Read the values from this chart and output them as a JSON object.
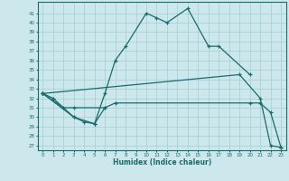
{
  "xlabel": "Humidex (Indice chaleur)",
  "xlim": [
    -0.5,
    23.5
  ],
  "ylim": [
    26.5,
    42.2
  ],
  "xticks": [
    0,
    1,
    2,
    3,
    4,
    5,
    6,
    7,
    8,
    9,
    10,
    11,
    12,
    13,
    14,
    15,
    16,
    17,
    18,
    19,
    20,
    21,
    22,
    23
  ],
  "yticks": [
    27,
    28,
    29,
    30,
    31,
    32,
    33,
    34,
    35,
    36,
    37,
    38,
    39,
    40,
    41
  ],
  "bg_color": "#cde8ec",
  "grid_color": "#a4cdd2",
  "line_color": "#1a6b6b",
  "lines": [
    {
      "x": [
        0,
        1,
        3,
        5,
        6,
        7,
        8,
        10,
        11,
        12,
        14,
        16,
        17,
        20
      ],
      "y": [
        32.5,
        32.0,
        30.0,
        29.3,
        32.5,
        36.0,
        37.5,
        41.0,
        40.5,
        40.0,
        41.5,
        37.5,
        37.5,
        34.5
      ]
    },
    {
      "x": [
        0,
        2,
        3,
        6,
        7,
        20,
        21,
        22,
        23
      ],
      "y": [
        32.5,
        31.0,
        31.0,
        31.0,
        31.5,
        31.5,
        31.5,
        30.5,
        26.8
      ]
    },
    {
      "x": [
        0,
        19,
        21,
        22,
        23
      ],
      "y": [
        32.5,
        34.5,
        32.0,
        27.0,
        26.8
      ]
    },
    {
      "x": [
        0,
        3,
        4,
        5,
        6
      ],
      "y": [
        32.5,
        30.0,
        29.5,
        29.3,
        31.0
      ]
    }
  ]
}
